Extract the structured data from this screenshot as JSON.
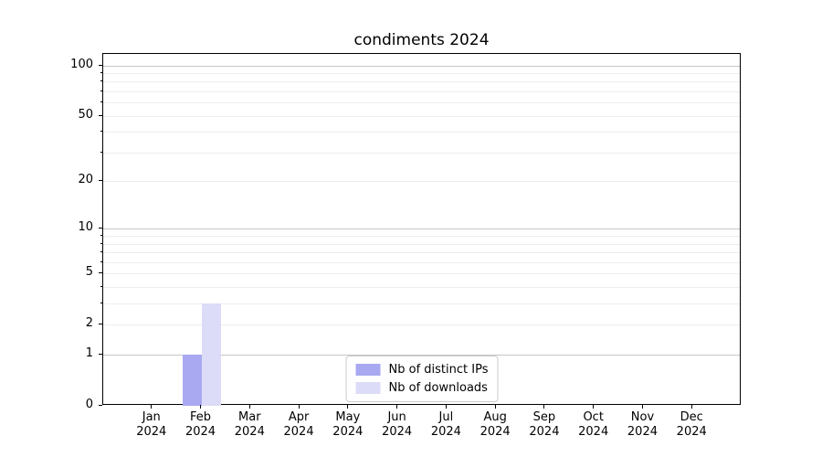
{
  "chart_data": {
    "type": "bar",
    "title": "condiments 2024",
    "categories": [
      {
        "month": "Jan",
        "year": "2024"
      },
      {
        "month": "Feb",
        "year": "2024"
      },
      {
        "month": "Mar",
        "year": "2024"
      },
      {
        "month": "Apr",
        "year": "2024"
      },
      {
        "month": "May",
        "year": "2024"
      },
      {
        "month": "Jun",
        "year": "2024"
      },
      {
        "month": "Jul",
        "year": "2024"
      },
      {
        "month": "Aug",
        "year": "2024"
      },
      {
        "month": "Sep",
        "year": "2024"
      },
      {
        "month": "Oct",
        "year": "2024"
      },
      {
        "month": "Nov",
        "year": "2024"
      },
      {
        "month": "Dec",
        "year": "2024"
      }
    ],
    "series": [
      {
        "name": "Nb of distinct IPs",
        "color": "#a9a9f2",
        "values": [
          0,
          1,
          0,
          0,
          0,
          0,
          0,
          0,
          0,
          0,
          0,
          0
        ]
      },
      {
        "name": "Nb of downloads",
        "color": "#dcdcf8",
        "values": [
          0,
          3,
          0,
          0,
          0,
          0,
          0,
          0,
          0,
          0,
          0,
          0
        ]
      }
    ],
    "y_axis": {
      "scale": "log1p",
      "max": 117,
      "ticks": [
        0,
        1,
        2,
        5,
        10,
        20,
        50,
        100
      ],
      "major_grid_values": [
        1,
        10,
        100
      ],
      "minor_grid_values": [
        2,
        3,
        4,
        5,
        6,
        7,
        8,
        9,
        20,
        30,
        40,
        50,
        60,
        70,
        80,
        90
      ]
    },
    "xlabel": "",
    "ylabel": "",
    "grid": true,
    "legend_position": "lower center",
    "colors": {
      "major_grid": "#c6c6c6",
      "minor_grid": "#ededed",
      "axis": "#000000",
      "background": "#ffffff"
    }
  }
}
